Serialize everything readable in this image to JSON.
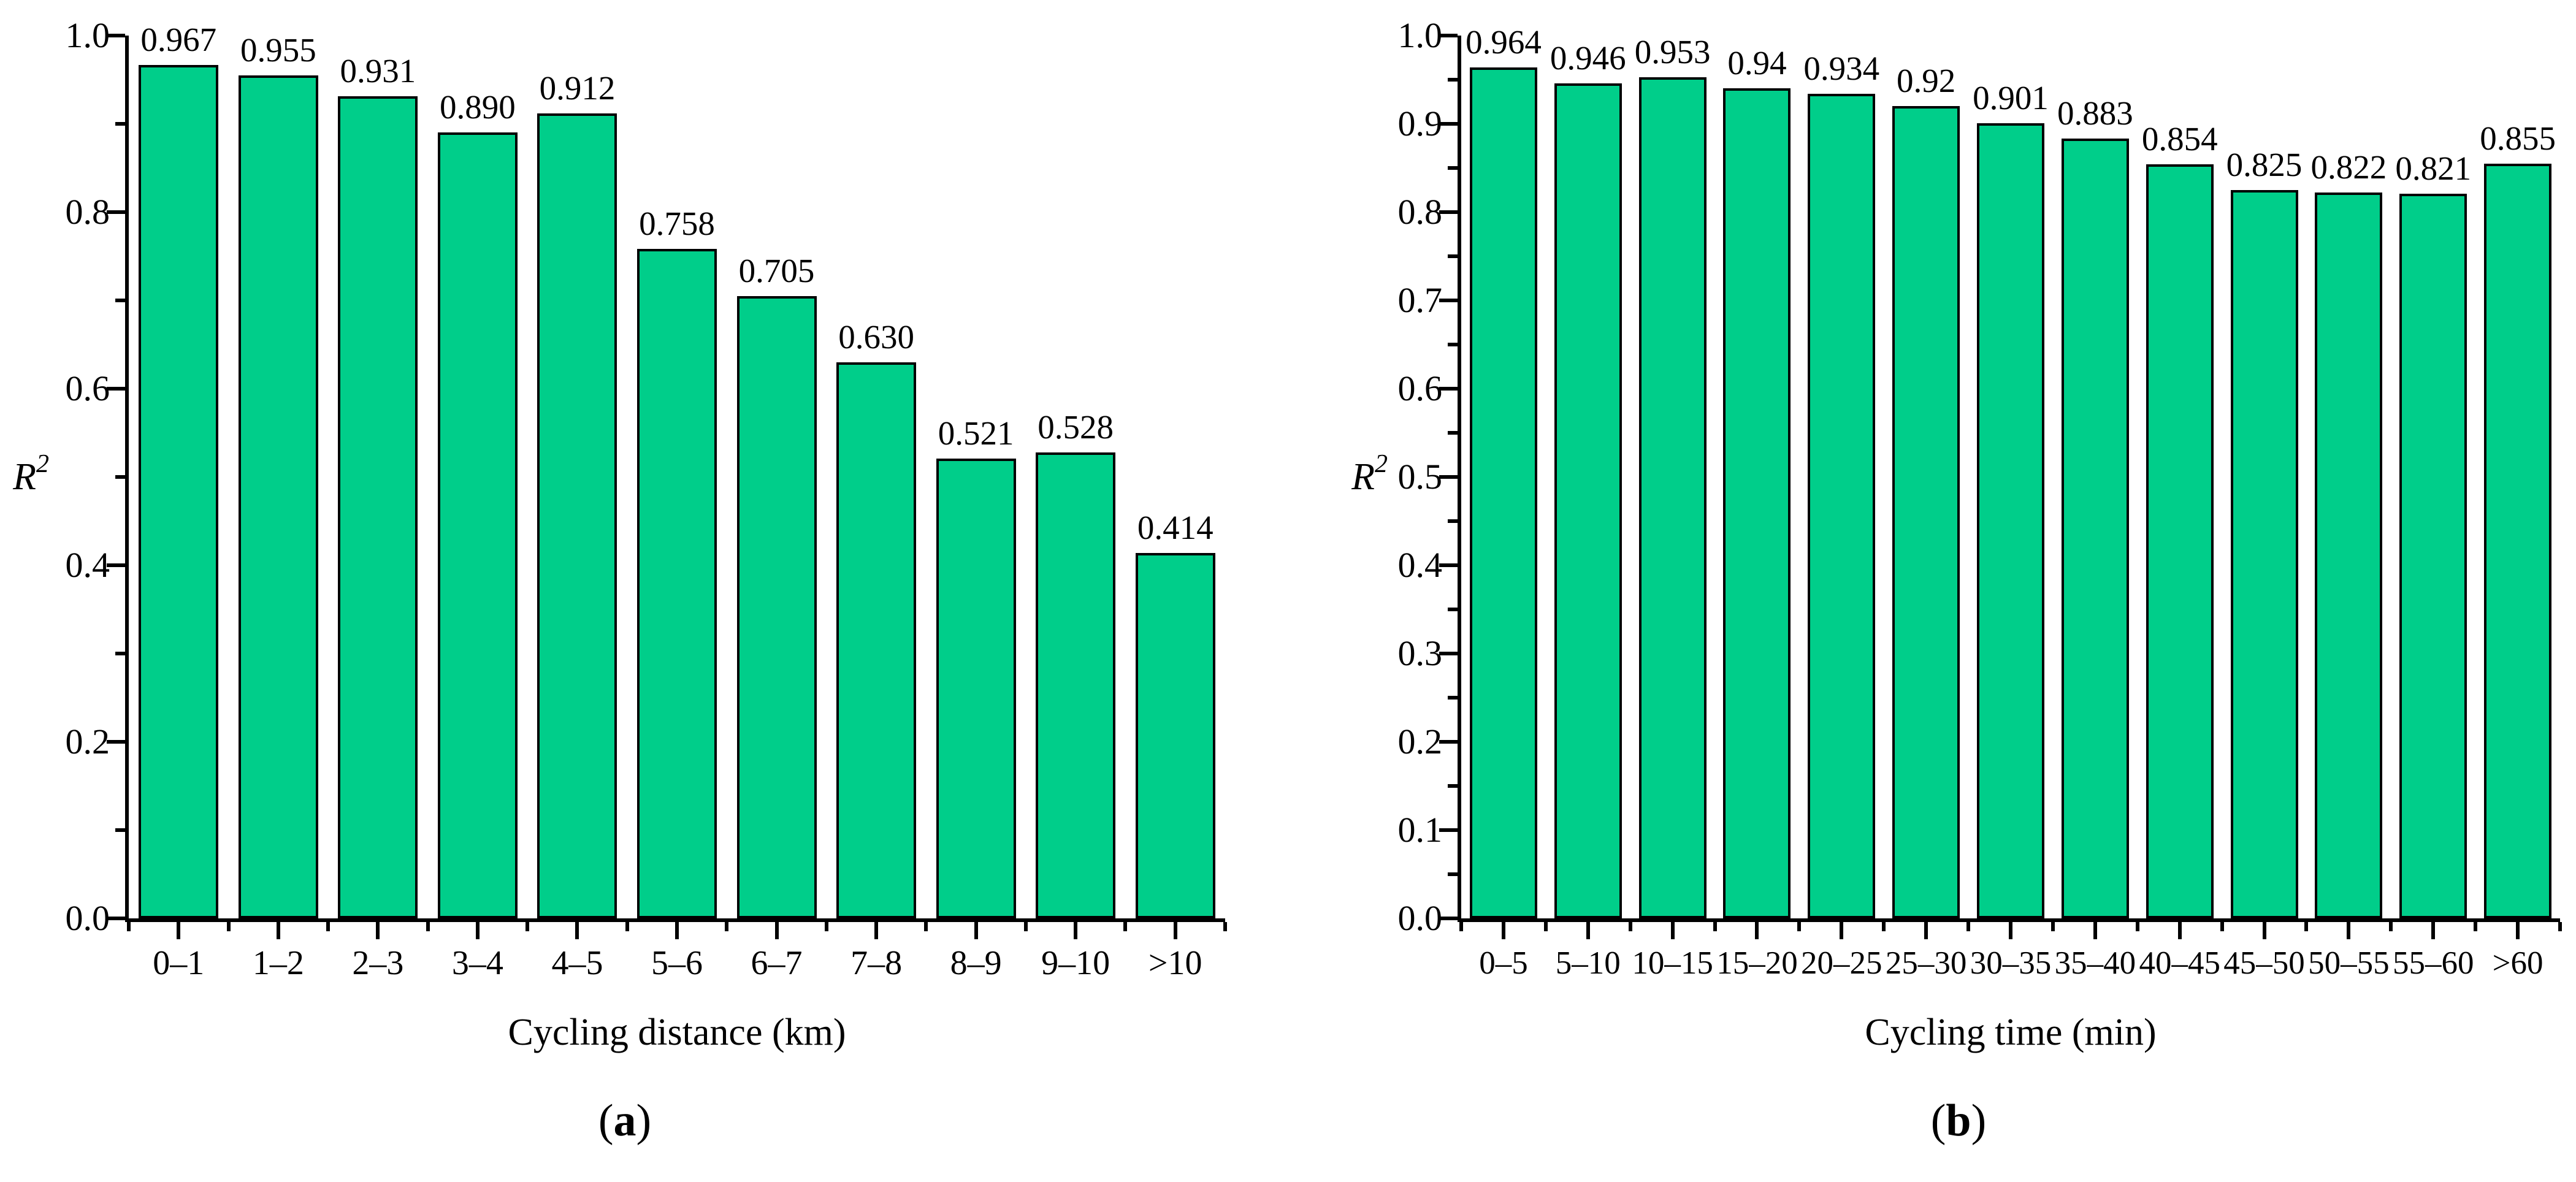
{
  "colors": {
    "bar_fill": "#00CE8A",
    "bar_edge": "#000000",
    "axis": "#000000",
    "text": "#000000",
    "background": "#ffffff"
  },
  "chart_data": [
    {
      "id": "a",
      "type": "bar",
      "categories": [
        "0–1",
        "1–2",
        "2–3",
        "3–4",
        "4–5",
        "5–6",
        "6–7",
        "7–8",
        "8–9",
        "9–10",
        ">10"
      ],
      "values": [
        0.967,
        0.955,
        0.931,
        0.89,
        0.912,
        0.758,
        0.705,
        0.63,
        0.521,
        0.528,
        0.414
      ],
      "value_labels": [
        "0.967",
        "0.955",
        "0.931",
        "0.890",
        "0.912",
        "0.758",
        "0.705",
        "0.630",
        "0.521",
        "0.528",
        "0.414"
      ],
      "title": "",
      "xlabel": "Cycling distance (km)",
      "ylabel_base": "R",
      "ylabel_exp": "2",
      "ylim": [
        0.0,
        1.0
      ],
      "y_major_step": 0.2,
      "y_minor_step": 0.1,
      "y_tick_labels": [
        "0.0",
        "0.2",
        "0.4",
        "0.6",
        "0.8",
        "1.0"
      ],
      "grid": false,
      "legend": null,
      "caption": {
        "open": "(",
        "letter": "a",
        "close": ")"
      }
    },
    {
      "id": "b",
      "type": "bar",
      "categories": [
        "0–5",
        "5–10",
        "10–15",
        "15–20",
        "20–25",
        "25–30",
        "30–35",
        "35–40",
        "40–45",
        "45–50",
        "50–55",
        "55–60",
        ">60"
      ],
      "values": [
        0.964,
        0.946,
        0.953,
        0.94,
        0.934,
        0.92,
        0.901,
        0.883,
        0.854,
        0.825,
        0.822,
        0.821,
        0.855
      ],
      "value_labels": [
        "0.964",
        "0.946",
        "0.953",
        "0.94",
        "0.934",
        "0.92",
        "0.901",
        "0.883",
        "0.854",
        "0.825",
        "0.822",
        "0.821",
        "0.855"
      ],
      "title": "",
      "xlabel": "Cycling time (min)",
      "ylabel_base": "R",
      "ylabel_exp": "2",
      "ylim": [
        0.0,
        1.0
      ],
      "y_major_step": 0.1,
      "y_minor_step": 0.05,
      "y_tick_labels": [
        "0.0",
        "0.1",
        "0.2",
        "0.3",
        "0.4",
        "0.5",
        "0.6",
        "0.7",
        "0.8",
        "0.9",
        "1.0"
      ],
      "grid": false,
      "legend": null,
      "caption": {
        "open": "(",
        "letter": "b",
        "close": ")"
      }
    }
  ]
}
